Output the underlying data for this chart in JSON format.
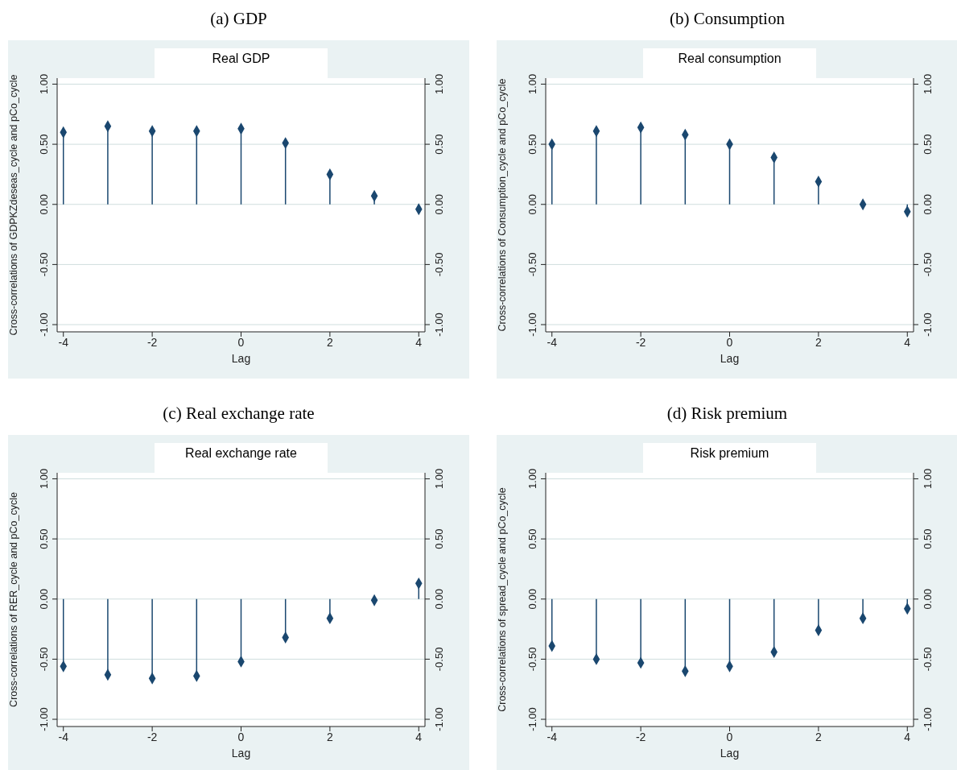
{
  "chart_data": [
    {
      "type": "lollipop",
      "title": "(a) GDP",
      "subtitle": "Real GDP",
      "xlabel": "Lag",
      "ylabel": "Cross-correlations of GDPKZdeseas_cycle and pCo_cycle",
      "x": [
        -4,
        -3,
        -2,
        -1,
        0,
        1,
        2,
        3,
        4
      ],
      "values": [
        0.6,
        0.65,
        0.61,
        0.61,
        0.63,
        0.51,
        0.25,
        0.07,
        -0.04
      ],
      "color": "#1a476f",
      "marker": "diamond",
      "grid": "y",
      "xlim": [
        -4.14,
        4.14
      ],
      "xticks": [
        -4,
        -2,
        0,
        2,
        4
      ],
      "ylim": [
        -1.06,
        1.05
      ],
      "yticks": [
        {
          "value": -1,
          "label": "-1.00"
        },
        {
          "value": -0.5,
          "label": "-0.50"
        },
        {
          "value": 0,
          "label": "0.00"
        },
        {
          "value": 0.5,
          "label": "0.50"
        },
        {
          "value": 1,
          "label": "1.00"
        }
      ],
      "y2lim": [
        -1.06,
        1.05
      ],
      "y2ticks": [
        {
          "value": -1,
          "label": "-1.00"
        },
        {
          "value": -0.5,
          "label": "-0.50"
        },
        {
          "value": 0,
          "label": "0.00"
        },
        {
          "value": 0.5,
          "label": "0.50"
        },
        {
          "value": 1,
          "label": "1.00"
        }
      ]
    },
    {
      "type": "lollipop",
      "title": "(b) Consumption",
      "subtitle": "Real consumption",
      "xlabel": "Lag",
      "ylabel": "Cross-correlations of Consumption_cycle and pCo_cycle",
      "x": [
        -4,
        -3,
        -2,
        -1,
        0,
        1,
        2,
        3,
        4
      ],
      "values": [
        0.5,
        0.61,
        0.64,
        0.58,
        0.5,
        0.39,
        0.19,
        0.0,
        -0.06
      ],
      "color": "#1a476f",
      "marker": "diamond",
      "grid": "y",
      "xlim": [
        -4.14,
        4.14
      ],
      "xticks": [
        -4,
        -2,
        0,
        2,
        4
      ],
      "ylim": [
        -1.06,
        1.05
      ],
      "yticks": [
        {
          "value": -1,
          "label": "-1.00"
        },
        {
          "value": -0.5,
          "label": "-0.50"
        },
        {
          "value": 0,
          "label": "0.00"
        },
        {
          "value": 0.5,
          "label": "0.50"
        },
        {
          "value": 1,
          "label": "1.00"
        }
      ],
      "y2lim": [
        -1.06,
        1.05
      ],
      "y2ticks": [
        {
          "value": -1,
          "label": "-1.00"
        },
        {
          "value": -0.5,
          "label": "-0.50"
        },
        {
          "value": 0,
          "label": "0.00"
        },
        {
          "value": 0.5,
          "label": "0.50"
        },
        {
          "value": 1,
          "label": "1.00"
        }
      ]
    },
    {
      "type": "lollipop",
      "title": "(c) Real exchange rate",
      "subtitle": "Real exchange rate",
      "xlabel": "Lag",
      "ylabel": "Cross-correlations of RER_cycle and pCo_cycle",
      "x": [
        -4,
        -3,
        -2,
        -1,
        0,
        1,
        2,
        3,
        4
      ],
      "values": [
        -0.56,
        -0.63,
        -0.66,
        -0.64,
        -0.52,
        -0.32,
        -0.16,
        -0.01,
        0.13
      ],
      "color": "#1a476f",
      "marker": "diamond",
      "grid": "y",
      "xlim": [
        -4.14,
        4.14
      ],
      "xticks": [
        -4,
        -2,
        0,
        2,
        4
      ],
      "ylim": [
        -1.06,
        1.05
      ],
      "yticks": [
        {
          "value": -1,
          "label": "-1.00"
        },
        {
          "value": -0.5,
          "label": "-0.50"
        },
        {
          "value": 0,
          "label": "0.00"
        },
        {
          "value": 0.5,
          "label": "0.50"
        },
        {
          "value": 1,
          "label": "1.00"
        }
      ],
      "y2lim": [
        -1.06,
        1.05
      ],
      "y2ticks": [
        {
          "value": -1,
          "label": "-1.00"
        },
        {
          "value": -0.5,
          "label": "-0.50"
        },
        {
          "value": 0,
          "label": "0.00"
        },
        {
          "value": 0.5,
          "label": "0.50"
        },
        {
          "value": 1,
          "label": "1.00"
        }
      ]
    },
    {
      "type": "lollipop",
      "title": "(d) Risk premium",
      "subtitle": "Risk premium",
      "xlabel": "Lag",
      "ylabel": "Cross-correlations of spread_cycle and pCo_cycle",
      "x": [
        -4,
        -3,
        -2,
        -1,
        0,
        1,
        2,
        3,
        4
      ],
      "values": [
        -0.39,
        -0.5,
        -0.53,
        -0.6,
        -0.56,
        -0.44,
        -0.26,
        -0.16,
        -0.08
      ],
      "color": "#1a476f",
      "marker": "diamond",
      "grid": "y",
      "xlim": [
        -4.14,
        4.14
      ],
      "xticks": [
        -4,
        -2,
        0,
        2,
        4
      ],
      "ylim": [
        -1.06,
        1.05
      ],
      "yticks": [
        {
          "value": -1,
          "label": "-1.00"
        },
        {
          "value": -0.5,
          "label": "-0.50"
        },
        {
          "value": 0,
          "label": "0.00"
        },
        {
          "value": 0.5,
          "label": "0.50"
        },
        {
          "value": 1,
          "label": "1.00"
        }
      ],
      "y2lim": [
        -1.06,
        1.05
      ],
      "y2ticks": [
        {
          "value": -1,
          "label": "-1.00"
        },
        {
          "value": -0.5,
          "label": "-0.50"
        },
        {
          "value": 0,
          "label": "0.00"
        },
        {
          "value": 0.5,
          "label": "0.50"
        },
        {
          "value": 1,
          "label": "1.00"
        }
      ]
    }
  ]
}
